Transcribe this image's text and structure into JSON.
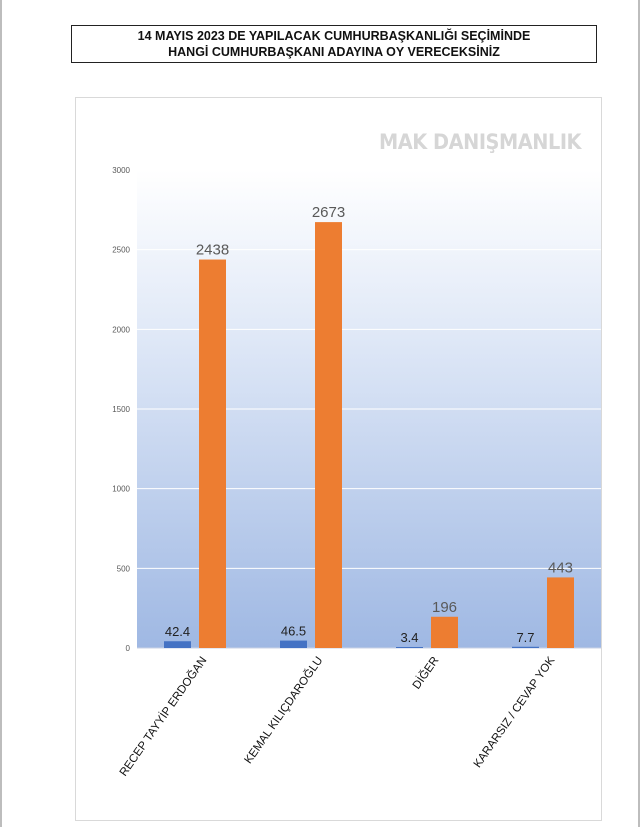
{
  "title": {
    "line1": "14 MAYIS 2023 DE YAPILACAK CUMHURBAŞKANLIĞI SEÇİMİNDE",
    "line2": "HANGİ CUMHURBAŞKANI ADAYINA OY VERECEKSİNİZ"
  },
  "watermark": "MAK DANIŞMANLIK",
  "chart_data": {
    "type": "bar",
    "title": "14 MAYIS 2023 DE YAPILACAK CUMHURBAŞKANLIĞI SEÇİMİNDE HANGİ CUMHURBAŞKANI ADAYINA OY VERECEKSİNİZ",
    "xlabel": "",
    "ylabel": "",
    "categories": [
      "RECEP TAYYİP ERDOĞAN",
      "KEMAL KILIÇDAROĞLU",
      "DİĞER",
      "KARARSIZ / CEVAP YOK"
    ],
    "series": [
      {
        "color": "#4472c4",
        "values": [
          42.4,
          46.5,
          3.4,
          7.7
        ]
      },
      {
        "color": "#ed7d31",
        "values": [
          2438,
          2673,
          196,
          443
        ]
      }
    ],
    "ylim": [
      0,
      3000
    ],
    "yticks": [
      0,
      500,
      1000,
      1500,
      2000,
      2500,
      3000
    ],
    "grid": true,
    "legend": "none"
  }
}
